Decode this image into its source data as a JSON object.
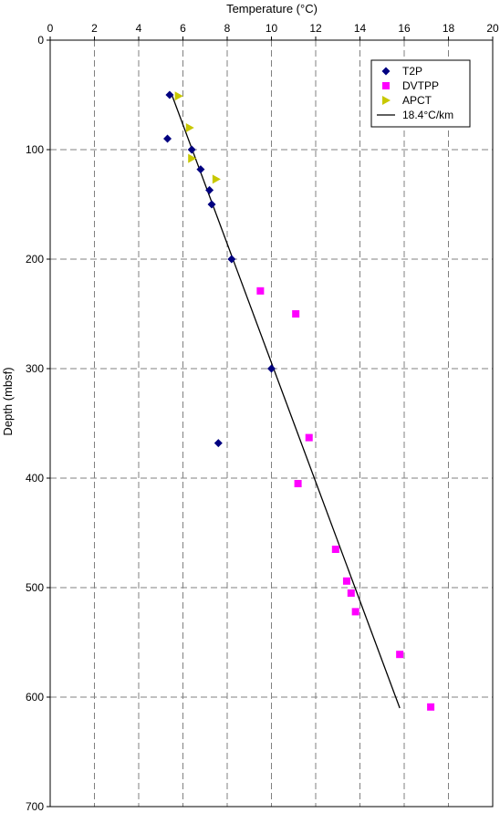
{
  "chart_data": {
    "type": "scatter",
    "title": "",
    "xlabel": "Temperature (°C)",
    "ylabel": "Depth (mbsf)",
    "xlim": [
      0,
      20
    ],
    "ylim": [
      0,
      700
    ],
    "y_inverted": true,
    "x_axis_position": "top",
    "x_ticks": [
      0,
      2,
      4,
      6,
      8,
      10,
      12,
      14,
      16,
      18,
      20
    ],
    "y_ticks": [
      0,
      100,
      200,
      300,
      400,
      500,
      600,
      700
    ],
    "grid": true,
    "legend_position": "top-right",
    "series": [
      {
        "name": "T2P",
        "marker": "diamond",
        "color": "#000080",
        "points": [
          [
            5.4,
            50
          ],
          [
            5.3,
            90
          ],
          [
            6.4,
            100
          ],
          [
            6.8,
            118
          ],
          [
            7.2,
            137
          ],
          [
            7.3,
            150
          ],
          [
            8.2,
            200
          ],
          [
            10.0,
            300
          ],
          [
            7.6,
            368
          ]
        ]
      },
      {
        "name": "DVTPP",
        "marker": "square",
        "color": "#ff00ff",
        "points": [
          [
            9.5,
            229
          ],
          [
            11.1,
            250
          ],
          [
            11.7,
            363
          ],
          [
            11.2,
            405
          ],
          [
            12.9,
            465
          ],
          [
            13.4,
            494
          ],
          [
            13.6,
            505
          ],
          [
            13.8,
            522
          ],
          [
            15.8,
            561
          ],
          [
            17.2,
            609
          ]
        ]
      },
      {
        "name": "APCT",
        "marker": "triangle-right",
        "color": "#c8c800",
        "points": [
          [
            5.8,
            51
          ],
          [
            6.3,
            80
          ],
          [
            6.4,
            108
          ],
          [
            7.5,
            127
          ]
        ]
      },
      {
        "name": "18.4°C/km",
        "marker": "line",
        "color": "#000000",
        "line": [
          [
            5.5,
            50
          ],
          [
            15.8,
            610
          ]
        ]
      }
    ]
  }
}
